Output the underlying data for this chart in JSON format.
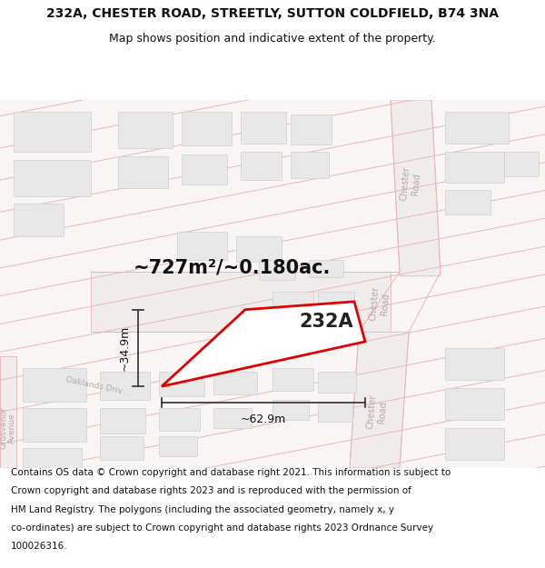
{
  "title_line1": "232A, CHESTER ROAD, STREETLY, SUTTON COLDFIELD, B74 3NA",
  "title_line2": "Map shows position and indicative extent of the property.",
  "footer_lines": [
    "Contains OS data © Crown copyright and database right 2021. This information is subject to Crown copyright and database rights 2023 and is reproduced with the permission of",
    "HM Land Registry. The polygons (including the associated geometry, namely x, y",
    "co-ordinates) are subject to Crown copyright and database rights 2023 Ordnance Survey",
    "100026316."
  ],
  "area_label": "~727m²/~0.180ac.",
  "label_232A": "232A",
  "dim_width": "~62.9m",
  "dim_height": "~34.9m",
  "map_bg": "#f7f3f3",
  "road_fill": "#f0e8e8",
  "road_edge": "#e8b8b8",
  "building_fill": "#e8e8e8",
  "building_edge": "#d0d0d0",
  "plot_edge": "#e00000",
  "plot_fill": "#ffffff",
  "dim_color": "#303030",
  "street_label_color": "#b8a8a8",
  "title_fs": 10,
  "subtitle_fs": 9,
  "footer_fs": 7.5,
  "area_fs": 15,
  "label_fs": 15,
  "dim_fs": 9,
  "street_fs": 7
}
